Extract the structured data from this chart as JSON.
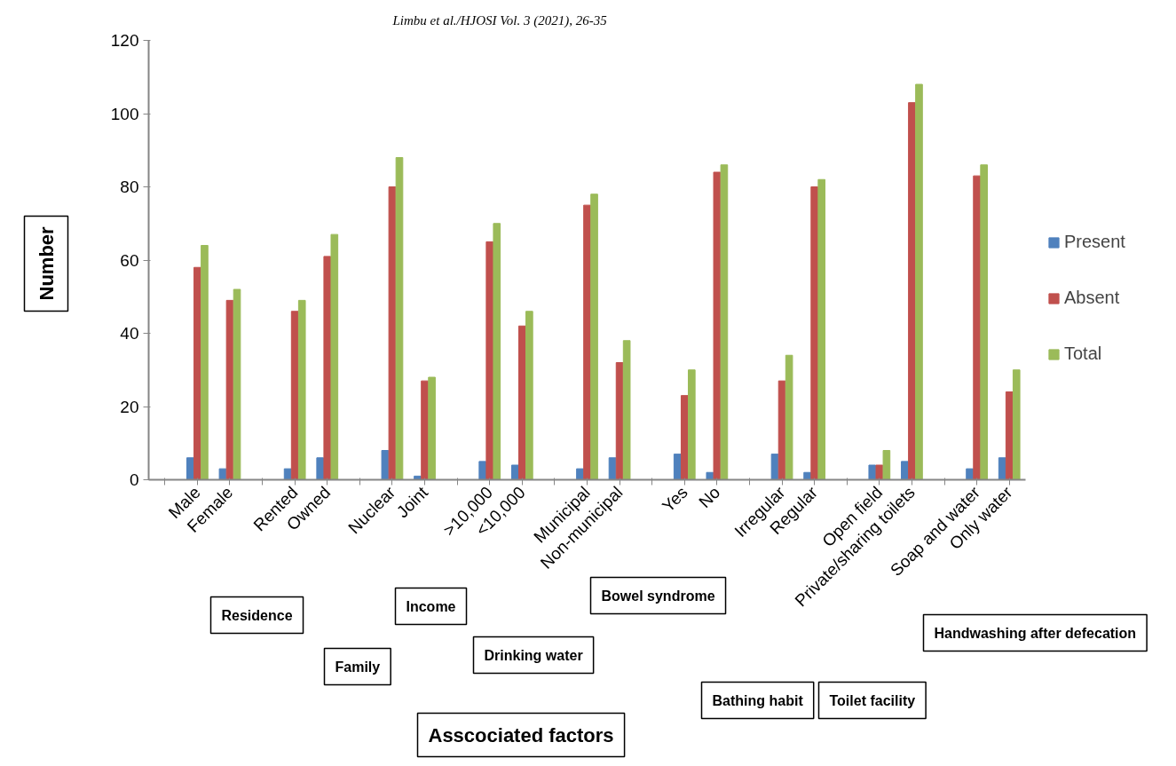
{
  "chart_data": {
    "type": "bar",
    "ylabel": "Number",
    "categories": [
      null,
      "Male",
      "Female",
      null,
      "Rented",
      "Owned",
      null,
      "Nuclear",
      "Joint",
      null,
      ">10,000",
      "<10,000",
      null,
      "Municipal",
      "Non-municipal",
      null,
      "Yes",
      "No",
      null,
      "Irregular",
      "Regular",
      null,
      "Open field",
      "Private/sharing toilets",
      null,
      "Soap and water",
      "Only water"
    ],
    "series": [
      {
        "name": "Present",
        "color": "#4f81bd",
        "values": [
          null,
          6,
          3,
          null,
          3,
          6,
          null,
          8,
          1,
          null,
          5,
          4,
          null,
          3,
          6,
          null,
          7,
          2,
          null,
          7,
          2,
          null,
          4,
          5,
          null,
          3,
          6
        ]
      },
      {
        "name": "Absent",
        "color": "#c0504d",
        "values": [
          null,
          58,
          49,
          null,
          46,
          61,
          null,
          80,
          27,
          null,
          65,
          42,
          null,
          75,
          32,
          null,
          23,
          84,
          null,
          27,
          80,
          null,
          4,
          103,
          null,
          83,
          24
        ]
      },
      {
        "name": "Total",
        "color": "#9bbb59",
        "values": [
          null,
          64,
          52,
          null,
          49,
          67,
          null,
          88,
          28,
          null,
          70,
          46,
          null,
          78,
          38,
          null,
          30,
          86,
          null,
          34,
          82,
          null,
          8,
          108,
          null,
          86,
          30
        ]
      }
    ],
    "ylim": [
      0,
      120
    ],
    "yticks": [
      0,
      20,
      40,
      60,
      80,
      100,
      120
    ],
    "grid": false,
    "legend": "right",
    "annotations": [
      "Limbu et al./HJOSI Vol. 3 (2021), 26-35",
      "Residence",
      "Family",
      "Income",
      "Drinking water",
      "Bowel syndrome",
      "Bathing habit",
      "Toilet facility",
      "Handwashing after defecation",
      "Asscociated factors"
    ]
  }
}
